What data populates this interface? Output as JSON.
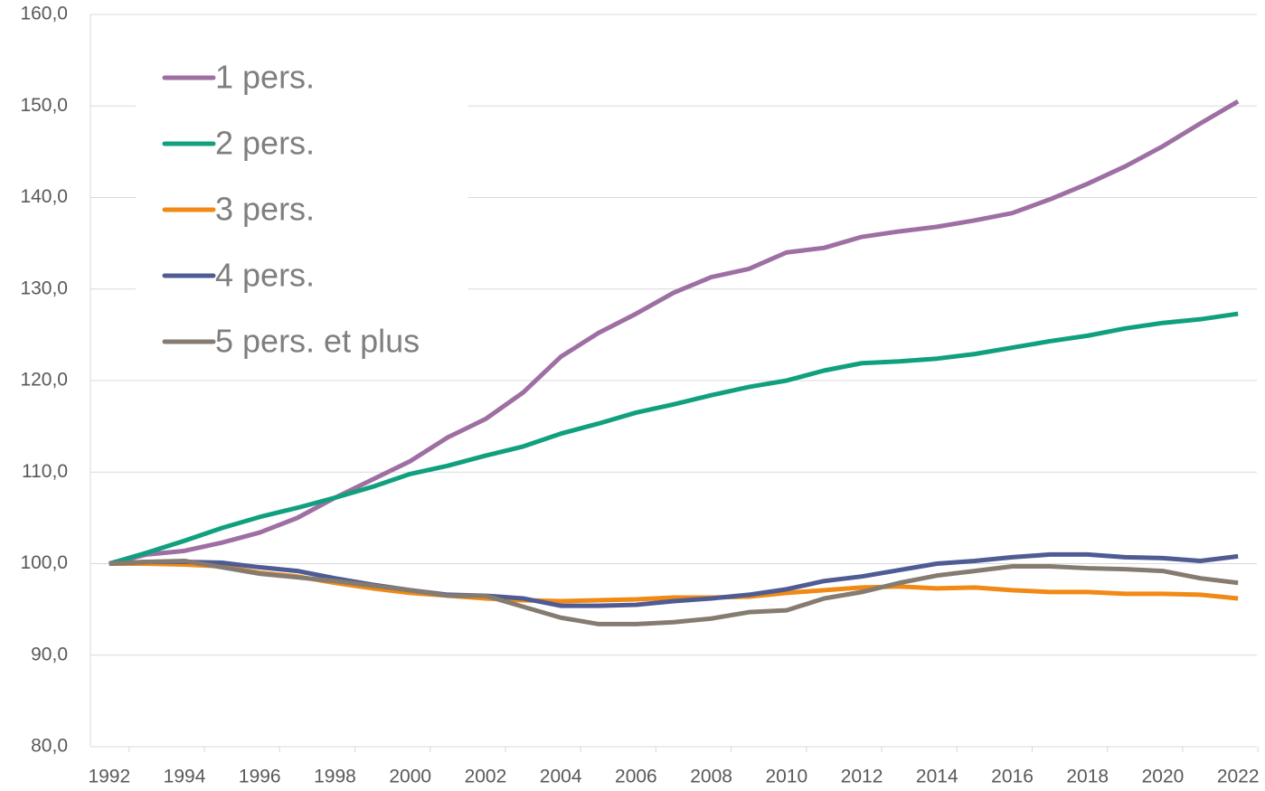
{
  "chart_data": {
    "type": "line",
    "x": [
      1992,
      1993,
      1994,
      1995,
      1996,
      1997,
      1998,
      1999,
      2000,
      2001,
      2002,
      2003,
      2004,
      2005,
      2006,
      2007,
      2008,
      2009,
      2010,
      2011,
      2012,
      2013,
      2014,
      2015,
      2016,
      2017,
      2018,
      2019,
      2020,
      2021,
      2022
    ],
    "series": [
      {
        "name": "1 pers.",
        "color": "#9e6fa3",
        "values": [
          100,
          101.0,
          101.4,
          102.3,
          103.4,
          105.0,
          107.2,
          109.2,
          111.2,
          113.8,
          115.8,
          118.7,
          122.6,
          125.2,
          127.3,
          129.6,
          131.3,
          132.2,
          134.0,
          134.5,
          135.7,
          136.3,
          136.8,
          137.5,
          138.3,
          139.8,
          141.5,
          143.4,
          145.6,
          148.1,
          150.5
        ]
      },
      {
        "name": "2 pers.",
        "color": "#10a07e",
        "values": [
          100,
          101.2,
          102.5,
          103.9,
          105.1,
          106.1,
          107.2,
          108.4,
          109.8,
          110.7,
          111.8,
          112.8,
          114.2,
          115.3,
          116.5,
          117.4,
          118.4,
          119.3,
          120.0,
          121.1,
          121.9,
          122.1,
          122.4,
          122.9,
          123.6,
          124.3,
          124.9,
          125.7,
          126.3,
          126.7,
          127.3
        ]
      },
      {
        "name": "3 pers.",
        "color": "#f08a14",
        "values": [
          100,
          100.0,
          99.9,
          99.7,
          99.0,
          98.6,
          97.9,
          97.3,
          96.8,
          96.5,
          96.2,
          96.0,
          95.9,
          96.0,
          96.1,
          96.3,
          96.3,
          96.4,
          96.8,
          97.1,
          97.4,
          97.5,
          97.3,
          97.4,
          97.1,
          96.9,
          96.9,
          96.7,
          96.7,
          96.6,
          96.2
        ]
      },
      {
        "name": "4 pers.",
        "color": "#4f5b93",
        "values": [
          100,
          100.2,
          100.2,
          100.1,
          99.6,
          99.2,
          98.4,
          97.7,
          97.1,
          96.6,
          96.5,
          96.2,
          95.4,
          95.4,
          95.5,
          95.9,
          96.2,
          96.6,
          97.2,
          98.1,
          98.6,
          99.3,
          100.0,
          100.3,
          100.7,
          101.0,
          101.0,
          100.7,
          100.6,
          100.3,
          100.8
        ]
      },
      {
        "name": "5 pers. et plus",
        "color": "#857b70",
        "values": [
          100,
          100.2,
          100.3,
          99.6,
          98.9,
          98.5,
          98.1,
          97.6,
          97.1,
          96.5,
          96.5,
          95.3,
          94.1,
          93.4,
          93.4,
          93.6,
          94.0,
          94.7,
          94.9,
          96.2,
          96.9,
          97.9,
          98.7,
          99.2,
          99.7,
          99.7,
          99.5,
          99.4,
          99.2,
          98.4,
          97.9
        ]
      }
    ],
    "xlim": [
      1991.5,
      2022.5
    ],
    "xticks": [
      1992,
      1994,
      1996,
      1998,
      2000,
      2002,
      2004,
      2006,
      2008,
      2010,
      2012,
      2014,
      2016,
      2018,
      2020,
      2022
    ],
    "ylim": [
      80,
      160
    ],
    "yticks": [
      {
        "value": 80,
        "label": "80,0"
      },
      {
        "value": 90,
        "label": "90,0"
      },
      {
        "value": 100,
        "label": "100,0"
      },
      {
        "value": 110,
        "label": "110,0"
      },
      {
        "value": 120,
        "label": "120,0"
      },
      {
        "value": 130,
        "label": "130,0"
      },
      {
        "value": 140,
        "label": "140,0"
      },
      {
        "value": 150,
        "label": "150,0"
      },
      {
        "value": 160,
        "label": "160,0"
      }
    ],
    "grid": true,
    "legend": "top-left"
  }
}
